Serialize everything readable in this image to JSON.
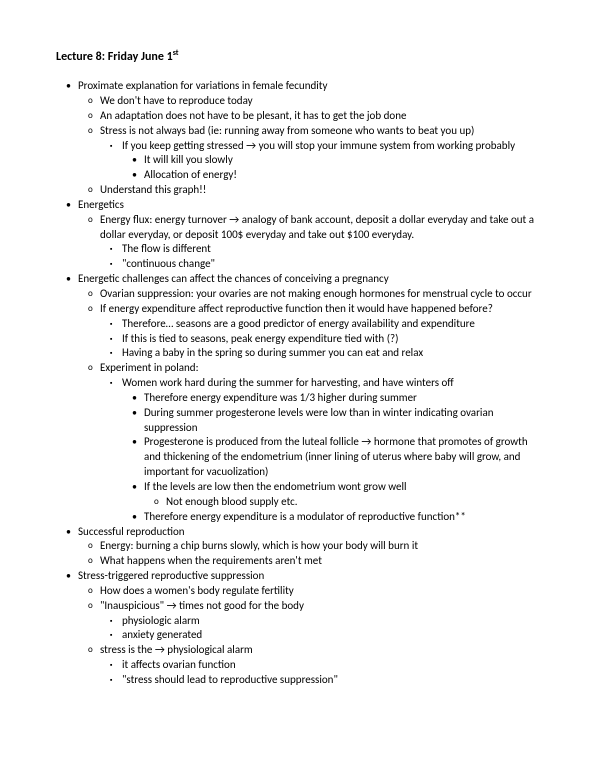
{
  "title_prefix": "Lecture 8: Friday June 1",
  "title_suffix": "st",
  "bullets": {
    "b1": "Proximate explanation for variations in female fecundity",
    "b1_1": "We don't have to reproduce today",
    "b1_2": "An adaptation does not have to be plesant, it has to get the job done",
    "b1_3": "Stress is not always bad (ie: running away from someone who wants to beat you up)",
    "b1_3_1": "If you keep getting stressed → you will stop your immune system from working probably",
    "b1_3_1_1": "It will kill you slowly",
    "b1_3_1_2": "Allocation of energy!",
    "b1_4": "Understand this graph!!",
    "b2": "Energetics",
    "b2_1": "Energy flux: energy turnover → analogy of bank account, deposit a dollar everyday and take out a dollar everyday, or deposit 100$ everyday and take out $100 everyday.",
    "b2_1_1": "The flow is different",
    "b2_1_2": "\"continuous change\"",
    "b3": "Energetic challenges can affect the chances of conceiving a pregnancy",
    "b3_1": "Ovarian suppression: your ovaries are not making enough hormones for menstrual cycle to occur",
    "b3_2": "If energy expenditure affect reproductive function then it would have happened before?",
    "b3_2_1": "Therefore… seasons are a good predictor of energy availability and expenditure",
    "b3_2_2": "If this is tied to seasons, peak energy expenditure tied with (?)",
    "b3_2_3": "Having a baby in the spring so during summer you can eat and relax",
    "b3_3": "Experiment in poland:",
    "b3_3_1": "Women work hard during the summer for harvesting, and have winters off",
    "b3_3_1_1": "Therefore energy expenditure was 1/3 higher during summer",
    "b3_3_1_2": "During summer progesterone levels were low than in winter indicating ovarian suppression",
    "b3_3_1_3": "Progesterone is produced from the luteal follicle → hormone that promotes of growth and thickening of the endometrium (inner lining of uterus where baby will grow, and important for vacuolization)",
    "b3_3_1_4": "If the levels are low then the endometrium wont grow well",
    "b3_3_1_4_1": "Not enough blood supply etc.",
    "b3_3_1_5": "Therefore energy expenditure is a modulator of reproductive function**",
    "b4": "Successful reproduction",
    "b4_1": "Energy: burning a chip burns slowly, which is how your body will burn it",
    "b4_2": "What happens when the requirements aren't met",
    "b5": "Stress-triggered reproductive suppression",
    "b5_1": "How does a women's body regulate fertility",
    "b5_2": "\"Inauspicious\" → times not good for the body",
    "b5_2_1": "physiologic alarm",
    "b5_2_2": "anxiety generated",
    "b5_3": "stress is the → physiological alarm",
    "b5_3_1": "it affects ovarian function",
    "b5_3_2": "\"stress should lead to reproductive suppression\""
  }
}
